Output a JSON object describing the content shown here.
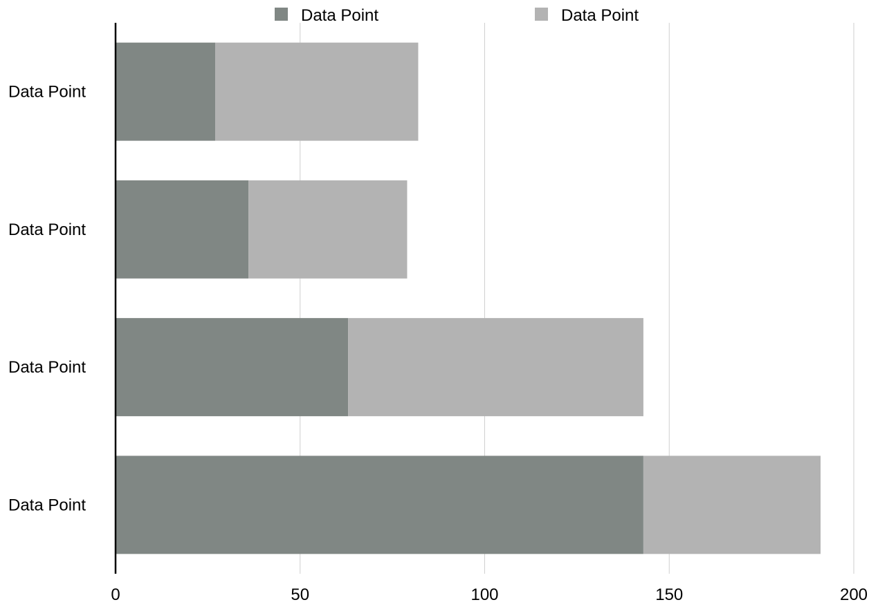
{
  "chart_data": {
    "type": "bar",
    "orientation": "horizontal",
    "stacked": true,
    "title": "",
    "xlabel": "",
    "ylabel": "",
    "categories": [
      "Data Point",
      "Data Point",
      "Data Point",
      "Data Point"
    ],
    "series": [
      {
        "name": "Data Point",
        "color": "#808784",
        "values": [
          27,
          36,
          63,
          143
        ]
      },
      {
        "name": "Data Point",
        "color": "#b3b3b3",
        "values": [
          55,
          43,
          80,
          48
        ]
      }
    ],
    "xlim": [
      0,
      200
    ],
    "xticks": [
      0,
      50,
      100,
      150,
      200
    ],
    "xtick_labels": [
      "0",
      "50",
      "100",
      "150",
      "200"
    ],
    "grid": "vertical",
    "legend_position": "top"
  }
}
